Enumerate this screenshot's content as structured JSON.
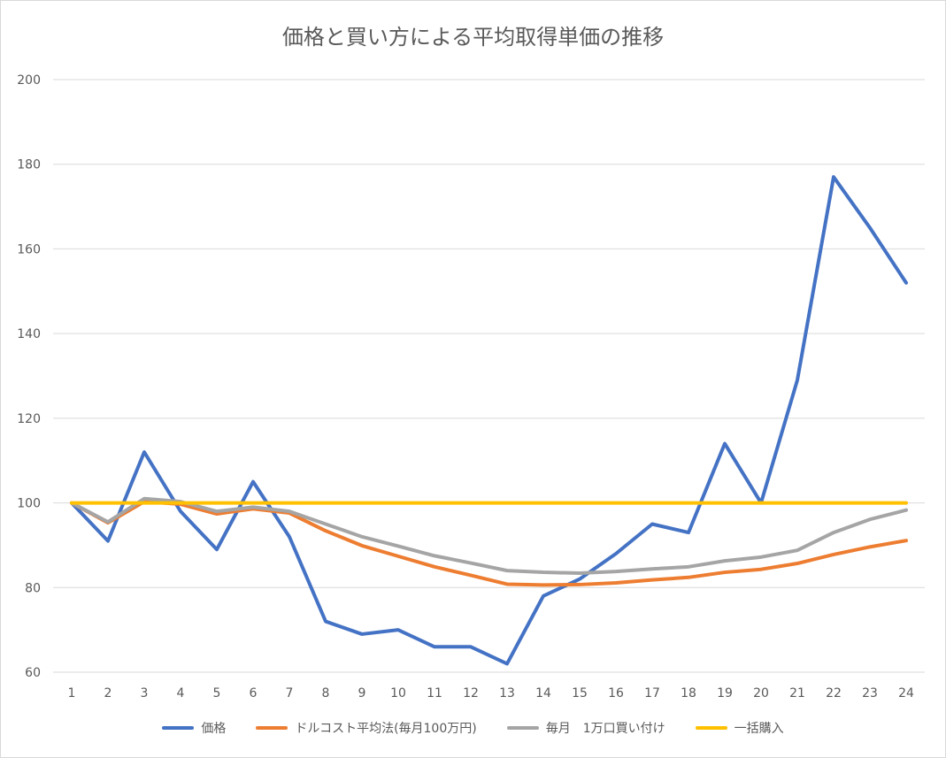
{
  "chart_data": {
    "type": "line",
    "title": "価格と買い方による平均取得単価の推移",
    "xlabel": "",
    "ylabel": "",
    "x": [
      1,
      2,
      3,
      4,
      5,
      6,
      7,
      8,
      9,
      10,
      11,
      12,
      13,
      14,
      15,
      16,
      17,
      18,
      19,
      20,
      21,
      22,
      23,
      24
    ],
    "ylim": [
      60,
      200
    ],
    "yticks": [
      60,
      80,
      100,
      120,
      140,
      160,
      180,
      200
    ],
    "grid": true,
    "legend_position": "bottom",
    "series": [
      {
        "name": "価格",
        "color": "#4472c4",
        "values": [
          100,
          91,
          112,
          98,
          89,
          105,
          92,
          72,
          69,
          70,
          66,
          66,
          62,
          78,
          82,
          88,
          95,
          93,
          114,
          100,
          129,
          177,
          165,
          152
        ]
      },
      {
        "name": "ドルコスト平均法(毎月100万円)",
        "color": "#ed7d31",
        "values": [
          100,
          95.3,
          100.3,
          99.7,
          97.4,
          98.6,
          97.6,
          93.4,
          89.9,
          87.4,
          84.9,
          82.9,
          80.8,
          80.6,
          80.7,
          81.1,
          81.8,
          82.4,
          83.6,
          84.3,
          85.7,
          87.8,
          89.6,
          91.1
        ]
      },
      {
        "name": "毎月　1万口買い付け",
        "color": "#a5a5a5",
        "values": [
          100,
          95.5,
          101,
          100.3,
          98,
          99,
          98,
          95,
          92,
          89.8,
          87.5,
          85.8,
          84,
          83.6,
          83.4,
          83.8,
          84.4,
          84.9,
          86.3,
          87.2,
          88.8,
          93,
          96.1,
          98.3
        ]
      },
      {
        "name": "一括購入",
        "color": "#ffc000",
        "values": [
          100,
          100,
          100,
          100,
          100,
          100,
          100,
          100,
          100,
          100,
          100,
          100,
          100,
          100,
          100,
          100,
          100,
          100,
          100,
          100,
          100,
          100,
          100,
          100
        ]
      }
    ]
  }
}
